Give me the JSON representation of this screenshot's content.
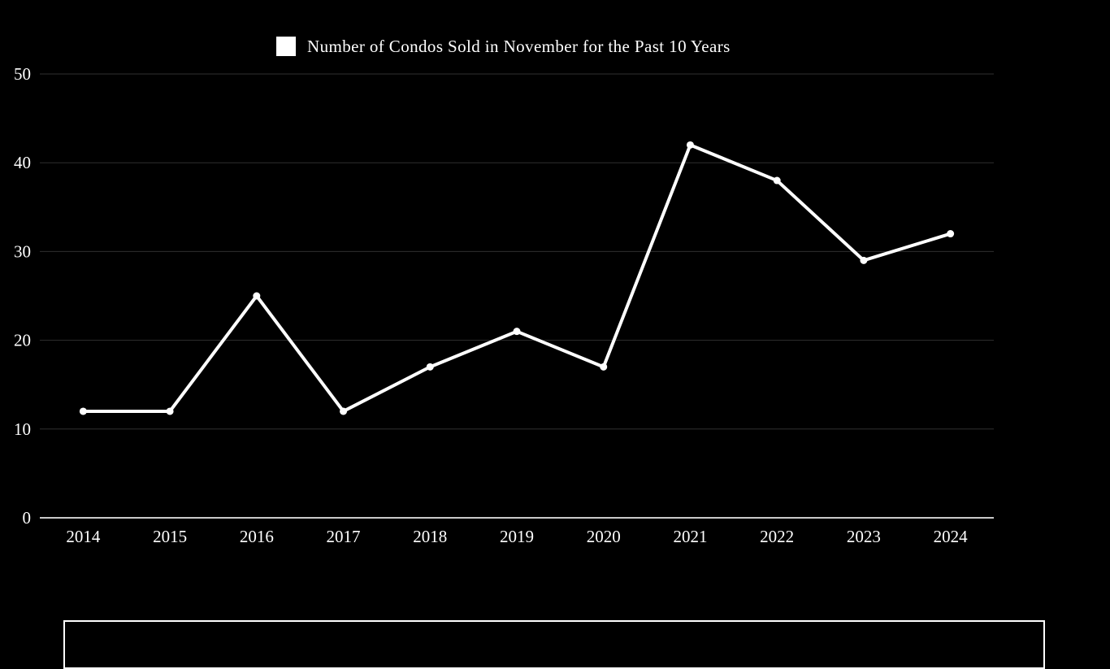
{
  "chart_data": {
    "type": "line",
    "title": "",
    "legend": {
      "label": "Number of Condos Sold in November for the Past 10 Years",
      "swatch_color": "#ffffff",
      "position": "top-center"
    },
    "categories": [
      "2014",
      "2015",
      "2016",
      "2017",
      "2018",
      "2019",
      "2020",
      "2021",
      "2022",
      "2023",
      "2024"
    ],
    "series": [
      {
        "name": "Number of Condos Sold in November for the Past 10 Years",
        "values": [
          12,
          12,
          25,
          12,
          17,
          21,
          17,
          42,
          38,
          29,
          32
        ]
      }
    ],
    "xlabel": "",
    "ylabel": "",
    "ylim": [
      0,
      50
    ],
    "yticks": [
      0,
      10,
      20,
      30,
      40,
      50
    ],
    "grid": true,
    "legend_position": "top",
    "colors": {
      "background": "#000000",
      "series": "#ffffff",
      "marker": "#ffffff",
      "gridline": "#2f2f2f",
      "zero_axis": "#c9c9c9",
      "tick_text": "#ffffff",
      "legend_text": "#ffffff"
    }
  },
  "footer_box": {
    "border_color": "#ffffff",
    "text": ""
  }
}
